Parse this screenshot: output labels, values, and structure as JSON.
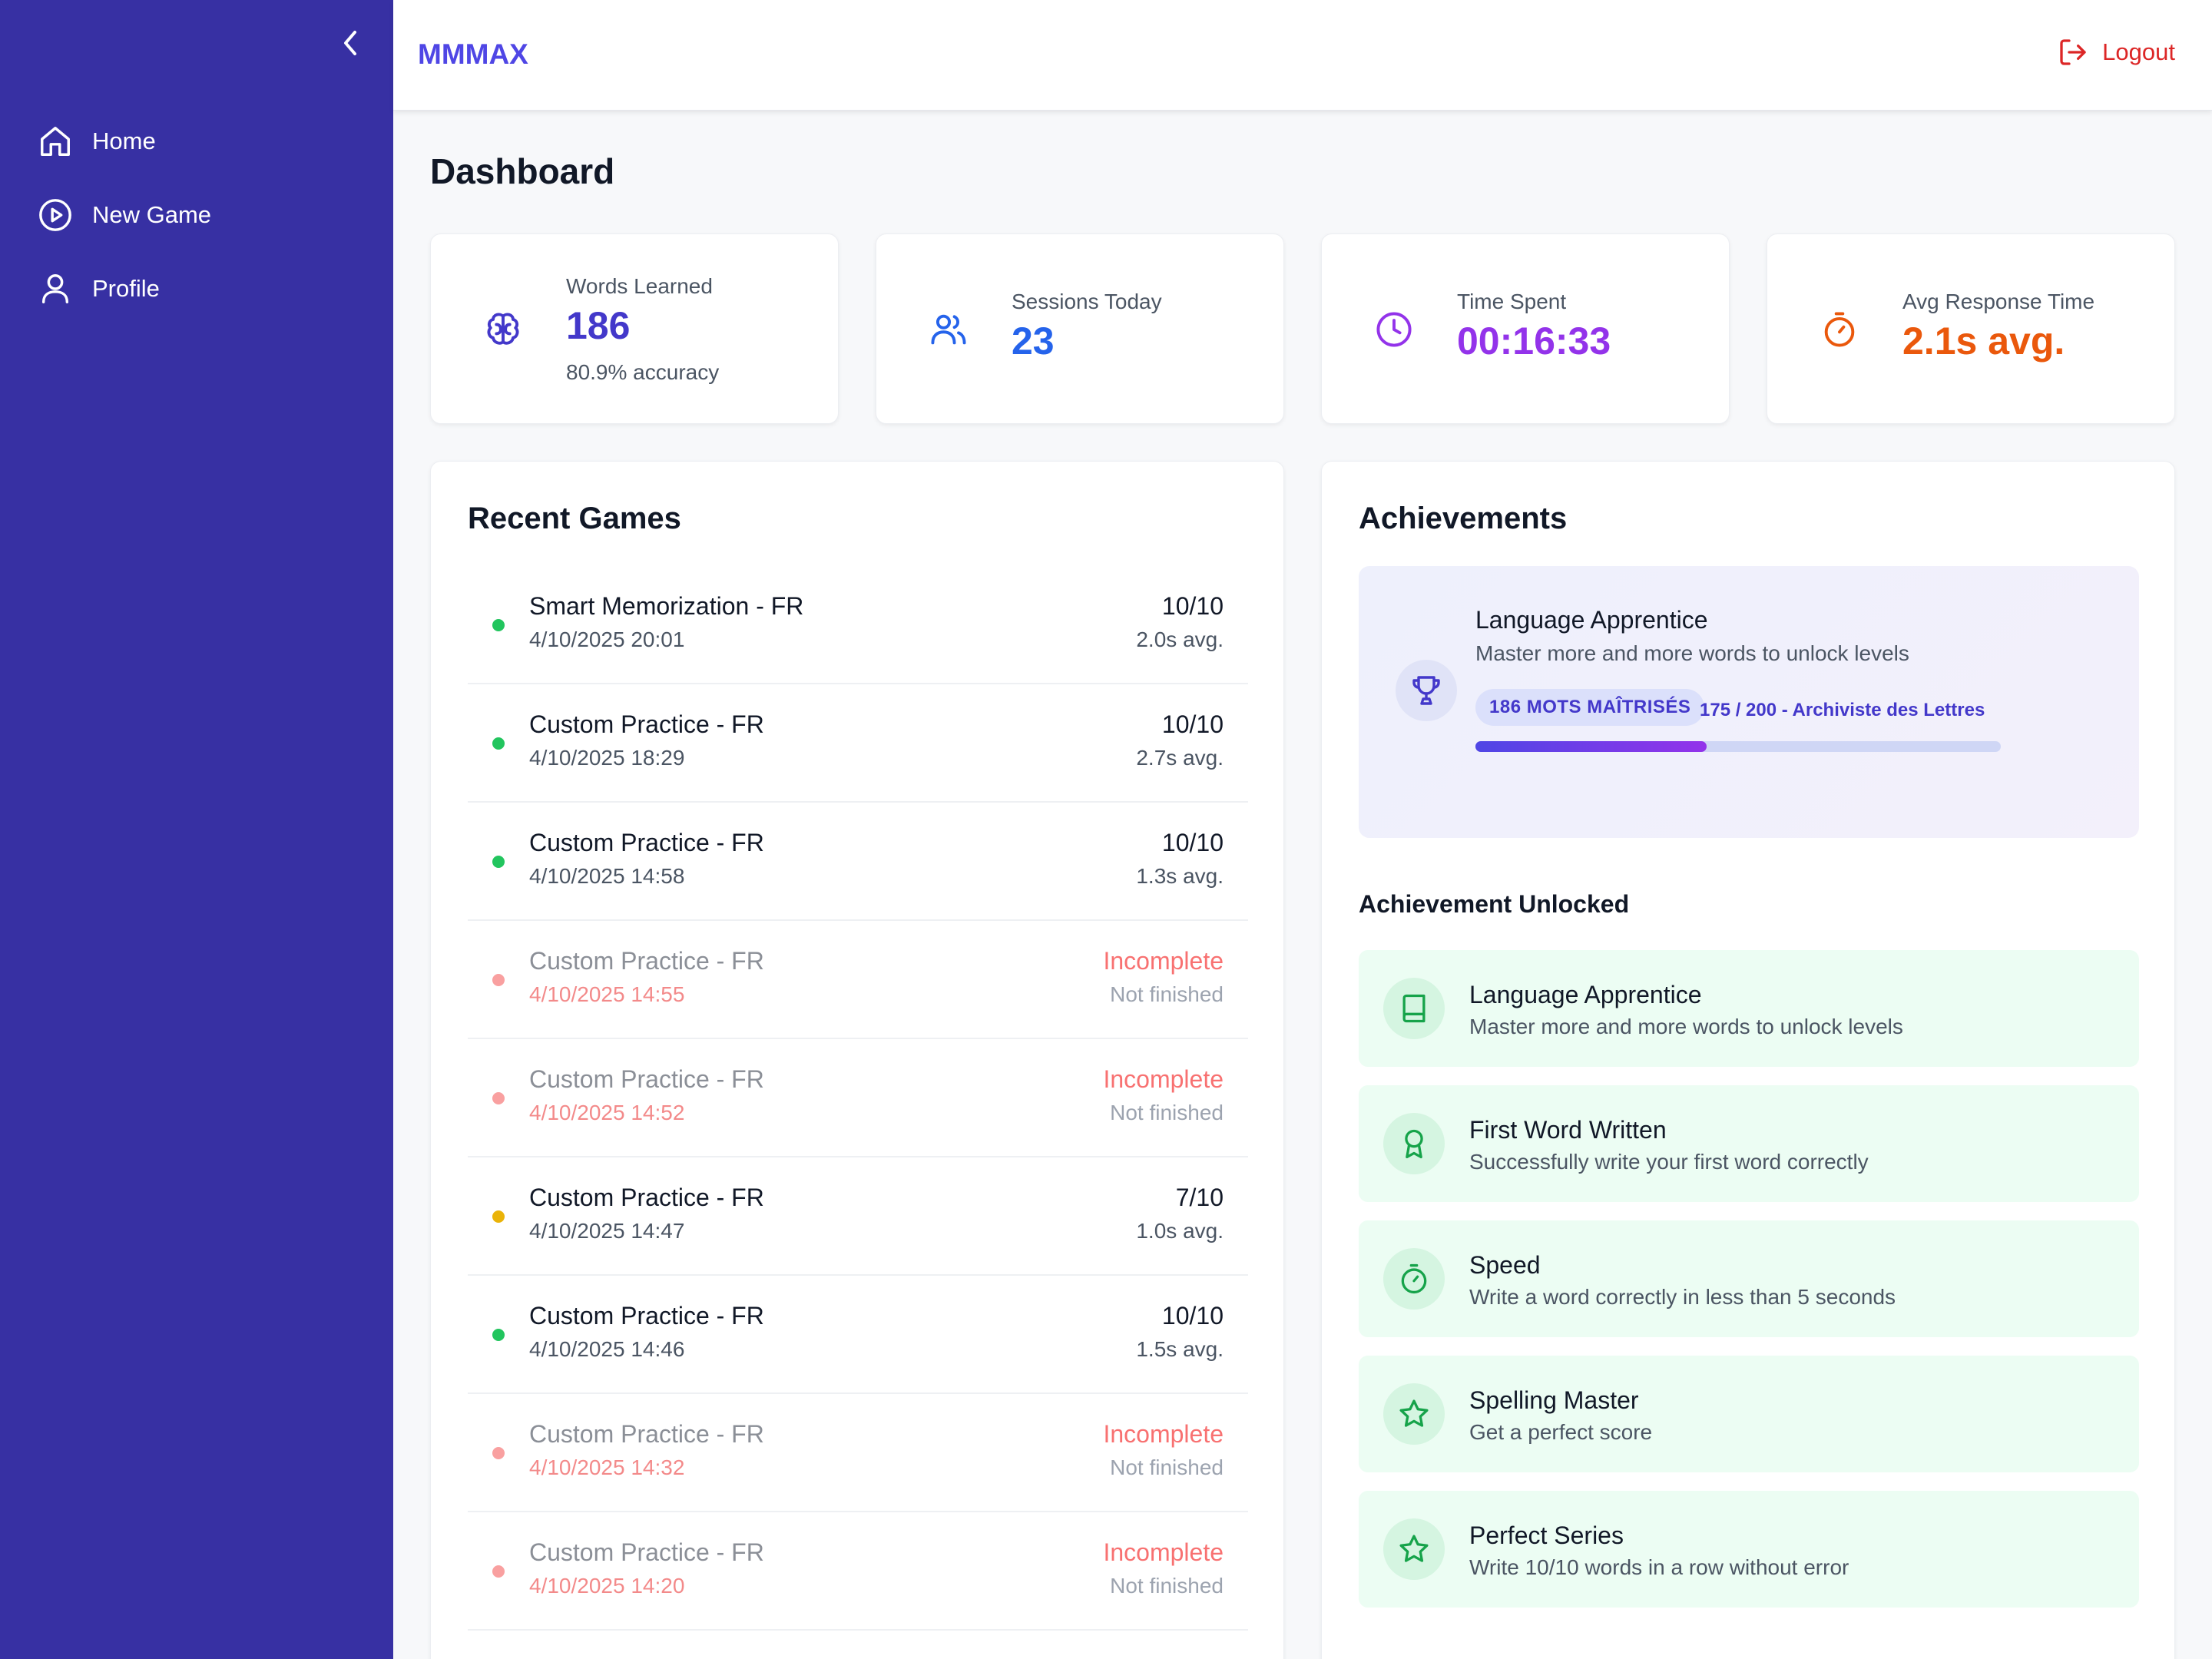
{
  "sidebar": {
    "items": [
      {
        "label": "Home",
        "icon": "home-icon"
      },
      {
        "label": "New Game",
        "icon": "play-circle-icon"
      },
      {
        "label": "Profile",
        "icon": "user-icon"
      }
    ]
  },
  "header": {
    "brand": "MMMAX",
    "logout_label": "Logout"
  },
  "page": {
    "title": "Dashboard"
  },
  "stats": [
    {
      "label": "Words Learned",
      "value": "186",
      "sub": "80.9% accuracy",
      "icon": "brain-icon",
      "color": "#4338ca"
    },
    {
      "label": "Sessions Today",
      "value": "23",
      "icon": "users-icon",
      "color": "#2563eb"
    },
    {
      "label": "Time Spent",
      "value": "00:16:33",
      "icon": "clock-icon",
      "color": "#9333ea"
    },
    {
      "label": "Avg Response Time",
      "value": "2.1s avg.",
      "icon": "timer-icon",
      "color": "#ea580c"
    }
  ],
  "recent_games": {
    "title": "Recent Games",
    "rows": [
      {
        "name": "Smart Memorization - FR",
        "date": "4/10/2025 20:01",
        "score": "10/10",
        "avg": "2.0s avg.",
        "status": "complete"
      },
      {
        "name": "Custom Practice - FR",
        "date": "4/10/2025 18:29",
        "score": "10/10",
        "avg": "2.7s avg.",
        "status": "complete"
      },
      {
        "name": "Custom Practice - FR",
        "date": "4/10/2025 14:58",
        "score": "10/10",
        "avg": "1.3s avg.",
        "status": "complete"
      },
      {
        "name": "Custom Practice - FR",
        "date": "4/10/2025 14:55",
        "score": "Incomplete",
        "avg": "Not finished",
        "status": "incomplete"
      },
      {
        "name": "Custom Practice - FR",
        "date": "4/10/2025 14:52",
        "score": "Incomplete",
        "avg": "Not finished",
        "status": "incomplete"
      },
      {
        "name": "Custom Practice - FR",
        "date": "4/10/2025 14:47",
        "score": "7/10",
        "avg": "1.0s avg.",
        "status": "partial"
      },
      {
        "name": "Custom Practice - FR",
        "date": "4/10/2025 14:46",
        "score": "10/10",
        "avg": "1.5s avg.",
        "status": "complete"
      },
      {
        "name": "Custom Practice - FR",
        "date": "4/10/2025 14:32",
        "score": "Incomplete",
        "avg": "Not finished",
        "status": "incomplete"
      },
      {
        "name": "Custom Practice - FR",
        "date": "4/10/2025 14:20",
        "score": "Incomplete",
        "avg": "Not finished",
        "status": "incomplete"
      }
    ],
    "status_colors": {
      "complete": "#22c55e",
      "partial": "#eab308",
      "incomplete": "#f9a0a0"
    }
  },
  "achievements": {
    "title": "Achievements",
    "current": {
      "title": "Language Apprentice",
      "description": "Master more and more words to unlock levels",
      "badge": "186 MOTS MAÎTRISÉS",
      "level": "175 / 200 - Archiviste des Lettres",
      "progress": 0.44,
      "icon": "trophy-icon"
    },
    "unlocked_title": "Achievement Unlocked",
    "unlocked": [
      {
        "title": "Language Apprentice",
        "description": "Master more and more words to unlock levels",
        "icon": "book-icon"
      },
      {
        "title": "First Word Written",
        "description": "Successfully write your first word correctly",
        "icon": "award-icon"
      },
      {
        "title": "Speed",
        "description": "Write a word correctly in less than 5 seconds",
        "icon": "timer-icon"
      },
      {
        "title": "Spelling Master",
        "description": "Get a perfect score",
        "icon": "star-icon"
      },
      {
        "title": "Perfect Series",
        "description": "Write 10/10 words in a row without error",
        "icon": "star-icon"
      }
    ]
  }
}
